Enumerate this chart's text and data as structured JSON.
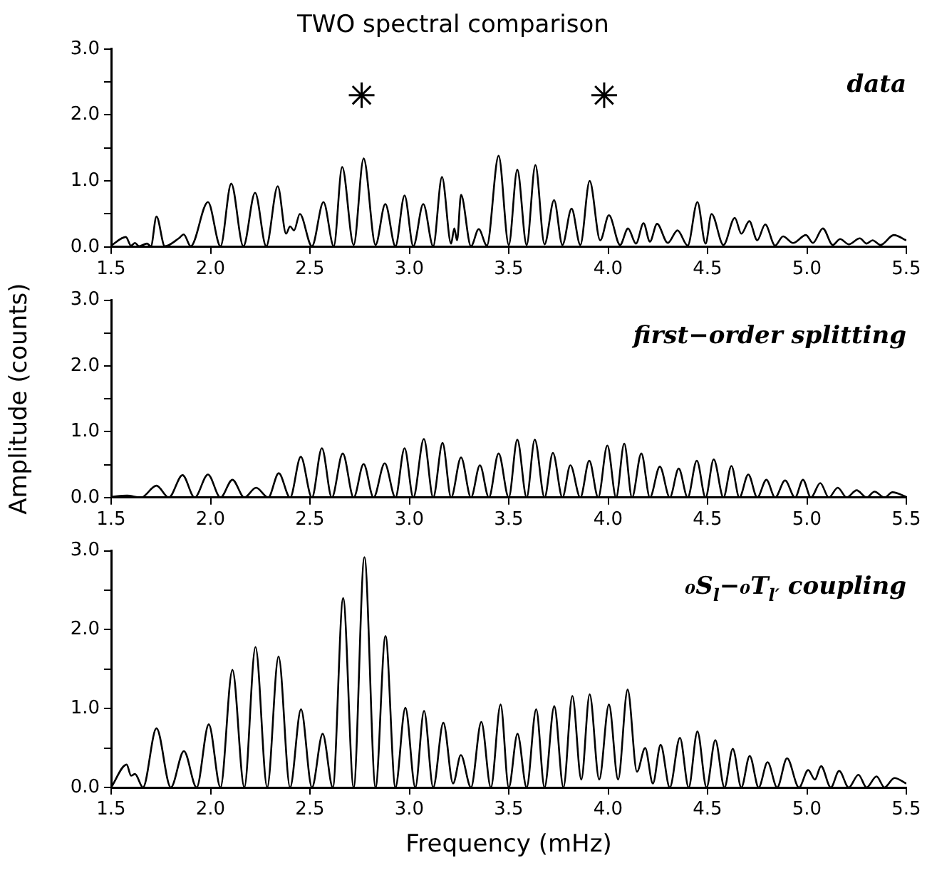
{
  "chart_data": [
    {
      "type": "line",
      "title": "TWO spectral comparison",
      "annotations": [
        "data"
      ],
      "xlim": [
        1.5,
        5.5
      ],
      "ylim": [
        0,
        3
      ],
      "xticks": [
        1.5,
        {
          "value": 2,
          "label": "2.0"
        },
        2.5,
        {
          "value": 3,
          "label": "3.0"
        },
        3.5,
        {
          "value": 4,
          "label": "4.0"
        },
        4.5,
        {
          "value": 5,
          "label": "5.0"
        },
        5.5
      ],
      "yticks": [
        {
          "value": 0,
          "label": "0.0"
        },
        {
          "value": 0.5,
          "label": null
        },
        {
          "value": 1,
          "label": "1.0"
        },
        {
          "value": 1.5,
          "label": null
        },
        {
          "value": 2,
          "label": "2.0"
        },
        {
          "value": 2.5,
          "label": null
        },
        {
          "value": 3,
          "label": "3.0"
        }
      ],
      "grid": false,
      "legend": false,
      "series": [
        {
          "color": "#000000",
          "x": [
            1.5,
            1.574,
            1.6,
            1.62,
            1.64,
            1.68,
            1.7,
            1.728,
            1.77,
            1.84,
            1.865,
            1.9,
            1.987,
            2.05,
            2.104,
            2.165,
            2.224,
            2.28,
            2.338,
            2.38,
            2.4,
            2.42,
            2.449,
            2.51,
            2.568,
            2.62,
            2.662,
            2.72,
            2.77,
            2.83,
            2.879,
            2.93,
            2.976,
            3.02,
            3.07,
            3.12,
            3.164,
            3.21,
            3.226,
            3.24,
            3.26,
            3.31,
            3.349,
            3.39,
            3.449,
            3.5,
            3.543,
            3.59,
            3.634,
            3.68,
            3.728,
            3.77,
            3.816,
            3.86,
            3.907,
            3.96,
            4.004,
            4.06,
            4.1,
            4.14,
            4.178,
            4.21,
            4.246,
            4.3,
            4.349,
            4.4,
            4.449,
            4.49,
            4.52,
            4.58,
            4.637,
            4.67,
            4.71,
            4.75,
            4.79,
            4.84,
            4.88,
            4.93,
            4.995,
            5.03,
            5.08,
            5.13,
            5.167,
            5.21,
            5.266,
            5.3,
            5.33,
            5.37,
            5.437,
            5.5
          ],
          "values": [
            0.02,
            0.15,
            0.02,
            0.06,
            0.01,
            0.05,
            0.01,
            0.46,
            0.01,
            0.13,
            0.19,
            0.01,
            0.68,
            0.01,
            0.96,
            0.01,
            0.82,
            0.01,
            0.92,
            0.2,
            0.31,
            0.25,
            0.5,
            0.01,
            0.68,
            0.01,
            1.21,
            0.03,
            1.34,
            0.03,
            0.65,
            0.01,
            0.78,
            0.01,
            0.65,
            0.01,
            1.06,
            0.05,
            0.28,
            0.1,
            0.79,
            0.01,
            0.27,
            0.02,
            1.38,
            0.03,
            1.17,
            0.03,
            1.24,
            0.04,
            0.71,
            0.03,
            0.58,
            0.03,
            1.0,
            0.1,
            0.48,
            0.03,
            0.28,
            0.05,
            0.36,
            0.08,
            0.35,
            0.06,
            0.25,
            0.02,
            0.68,
            0.05,
            0.5,
            0.03,
            0.44,
            0.2,
            0.39,
            0.1,
            0.34,
            0.02,
            0.16,
            0.06,
            0.18,
            0.06,
            0.28,
            0.03,
            0.12,
            0.04,
            0.13,
            0.05,
            0.1,
            0.03,
            0.18,
            0.1
          ]
        },
        {
          "type": "scatter",
          "color": "#000000",
          "marker": "cross",
          "x": [
            2.76,
            3.98
          ],
          "values": [
            2.3,
            2.3
          ]
        }
      ]
    },
    {
      "type": "line",
      "ylabel": "Amplitude (counts)",
      "annotations": [
        "first−order splitting"
      ],
      "xlim": [
        1.5,
        5.5
      ],
      "ylim": [
        0,
        3
      ],
      "xticks": [
        1.5,
        {
          "value": 2,
          "label": "2.0"
        },
        2.5,
        {
          "value": 3,
          "label": "3.0"
        },
        3.5,
        {
          "value": 4,
          "label": "4.0"
        },
        4.5,
        {
          "value": 5,
          "label": "5.0"
        },
        5.5
      ],
      "yticks": [
        {
          "value": 0,
          "label": "0.0"
        },
        {
          "value": 0.5,
          "label": null
        },
        {
          "value": 1,
          "label": "1.0"
        },
        {
          "value": 1.5,
          "label": null
        },
        {
          "value": 2,
          "label": "2.0"
        },
        {
          "value": 2.5,
          "label": null
        },
        {
          "value": 3,
          "label": "3.0"
        }
      ],
      "grid": false,
      "legend": false,
      "series": [
        {
          "color": "#000000",
          "x": [
            1.5,
            1.58,
            1.65,
            1.728,
            1.79,
            1.859,
            1.92,
            1.987,
            2.05,
            2.11,
            2.17,
            2.229,
            2.29,
            2.343,
            2.4,
            2.454,
            2.51,
            2.56,
            2.61,
            2.665,
            2.72,
            2.77,
            2.82,
            2.876,
            2.93,
            2.976,
            3.02,
            3.073,
            3.12,
            3.167,
            3.21,
            3.26,
            3.31,
            3.355,
            3.4,
            3.449,
            3.5,
            3.543,
            3.59,
            3.631,
            3.68,
            3.722,
            3.77,
            3.81,
            3.86,
            3.905,
            3.95,
            3.996,
            4.04,
            4.081,
            4.12,
            4.167,
            4.21,
            4.26,
            4.31,
            4.355,
            4.4,
            4.446,
            4.49,
            4.531,
            4.58,
            4.62,
            4.66,
            4.705,
            4.75,
            4.796,
            4.84,
            4.89,
            4.94,
            4.98,
            5.02,
            5.067,
            5.11,
            5.155,
            5.2,
            5.25,
            5.3,
            5.34,
            5.39,
            5.43,
            5.5
          ],
          "values": [
            0.01,
            0.03,
            0,
            0.18,
            0,
            0.34,
            0,
            0.35,
            0,
            0.27,
            0,
            0.15,
            0,
            0.37,
            0,
            0.62,
            0,
            0.75,
            0,
            0.67,
            0,
            0.51,
            0,
            0.52,
            0,
            0.75,
            0,
            0.89,
            0,
            0.83,
            0,
            0.61,
            0,
            0.49,
            0,
            0.67,
            0,
            0.88,
            0,
            0.88,
            0,
            0.68,
            0,
            0.49,
            0,
            0.56,
            0,
            0.79,
            0,
            0.82,
            0,
            0.67,
            0,
            0.47,
            0,
            0.44,
            0,
            0.56,
            0,
            0.58,
            0,
            0.48,
            0,
            0.35,
            0,
            0.27,
            0,
            0.26,
            0,
            0.27,
            0,
            0.22,
            0,
            0.15,
            0,
            0.11,
            0,
            0.09,
            0,
            0.08,
            0.01
          ]
        }
      ]
    },
    {
      "type": "line",
      "xlabel": "Frequency (mHz)",
      "annotations": [
        "₀S$_{l}$−₀T$_{l′}$ coupling"
      ],
      "xlim": [
        1.5,
        5.5
      ],
      "ylim": [
        0,
        3
      ],
      "xticks": [
        1.5,
        {
          "value": 2,
          "label": "2.0"
        },
        2.5,
        {
          "value": 3,
          "label": "3.0"
        },
        3.5,
        {
          "value": 4,
          "label": "4.0"
        },
        4.5,
        {
          "value": 5,
          "label": "5.0"
        },
        5.5
      ],
      "yticks": [
        {
          "value": 0,
          "label": "0.0"
        },
        {
          "value": 0.5,
          "label": null
        },
        {
          "value": 1,
          "label": "1.0"
        },
        {
          "value": 1.5,
          "label": null
        },
        {
          "value": 2,
          "label": "2.0"
        },
        {
          "value": 2.5,
          "label": null
        },
        {
          "value": 3,
          "label": "3.0"
        }
      ],
      "grid": false,
      "legend": false,
      "series": [
        {
          "color": "#000000",
          "x": [
            1.5,
            1.578,
            1.6,
            1.62,
            1.66,
            1.728,
            1.8,
            1.866,
            1.93,
            1.991,
            2.05,
            2.11,
            2.17,
            2.226,
            2.285,
            2.342,
            2.4,
            2.455,
            2.51,
            2.564,
            2.615,
            2.667,
            2.72,
            2.774,
            2.83,
            2.88,
            2.93,
            2.98,
            3.03,
            3.074,
            3.12,
            3.171,
            3.22,
            3.259,
            3.31,
            3.362,
            3.41,
            3.459,
            3.5,
            3.544,
            3.59,
            3.638,
            3.68,
            3.729,
            3.775,
            3.82,
            3.865,
            3.907,
            3.955,
            4.004,
            4.05,
            4.098,
            4.145,
            4.186,
            4.225,
            4.264,
            4.31,
            4.361,
            4.405,
            4.449,
            4.495,
            4.539,
            4.585,
            4.627,
            4.67,
            4.712,
            4.757,
            4.802,
            4.85,
            4.9,
            4.96,
            5.006,
            5.04,
            5.071,
            5.12,
            5.162,
            5.21,
            5.259,
            5.3,
            5.35,
            5.39,
            5.44,
            5.5
          ],
          "values": [
            0,
            0.29,
            0.15,
            0.17,
            0,
            0.75,
            0,
            0.46,
            0,
            0.8,
            0,
            1.49,
            0,
            1.78,
            0,
            1.66,
            0,
            0.99,
            0,
            0.68,
            0,
            2.4,
            0,
            2.92,
            0,
            1.92,
            0,
            1.01,
            0,
            0.97,
            0,
            0.82,
            0.05,
            0.41,
            0,
            0.83,
            0,
            1.05,
            0,
            0.68,
            0,
            0.99,
            0,
            1.03,
            0,
            1.16,
            0.1,
            1.18,
            0.1,
            1.05,
            0.1,
            1.24,
            0.2,
            0.5,
            0.05,
            0.54,
            0,
            0.63,
            0,
            0.71,
            0,
            0.6,
            0,
            0.49,
            0,
            0.4,
            0,
            0.32,
            0,
            0.37,
            0,
            0.22,
            0.1,
            0.27,
            0,
            0.21,
            0,
            0.16,
            0,
            0.14,
            0,
            0.12,
            0.05
          ]
        }
      ]
    }
  ]
}
